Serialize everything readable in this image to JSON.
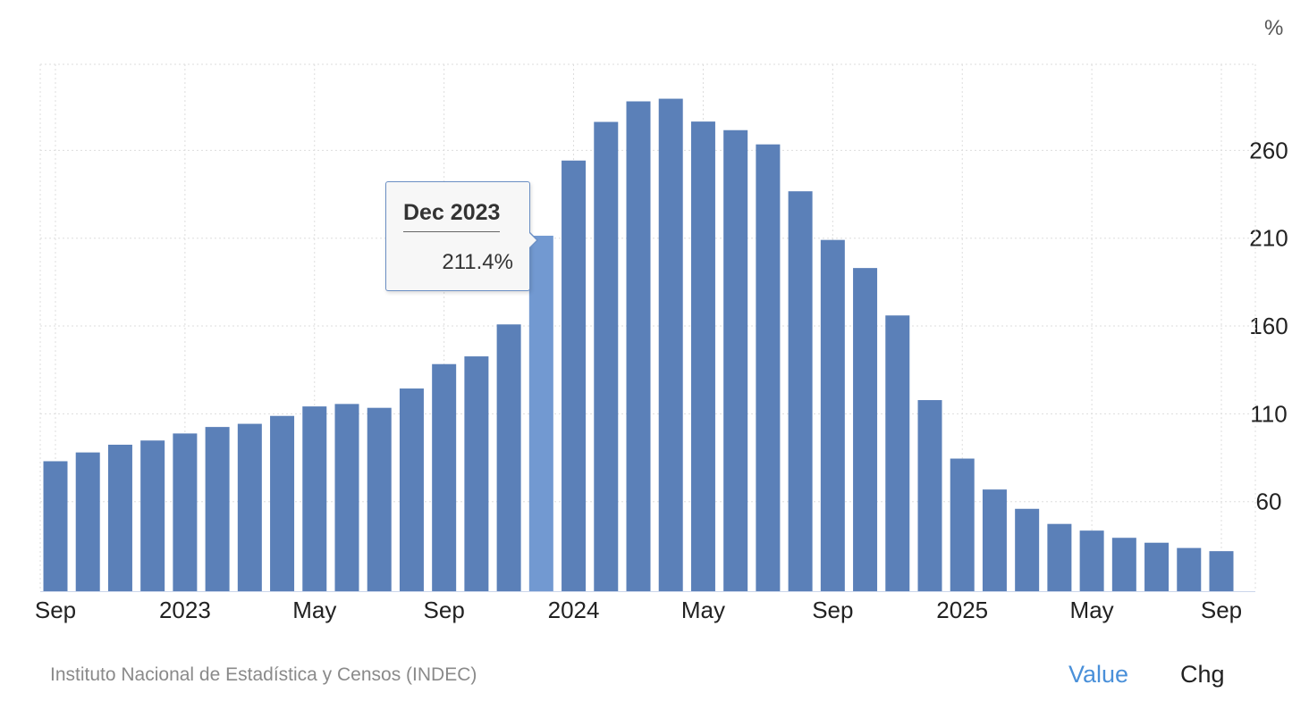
{
  "chart_data": {
    "type": "bar",
    "unit_label": "%",
    "categories": [
      "Sep 2022",
      "Oct 2022",
      "Nov 2022",
      "Dec 2022",
      "Jan 2023",
      "Feb 2023",
      "Mar 2023",
      "Apr 2023",
      "May 2023",
      "Jun 2023",
      "Jul 2023",
      "Aug 2023",
      "Sep 2023",
      "Oct 2023",
      "Nov 2023",
      "Dec 2023",
      "Jan 2024",
      "Feb 2024",
      "Mar 2024",
      "Apr 2024",
      "May 2024",
      "Jun 2024",
      "Jul 2024",
      "Aug 2024",
      "Sep 2024",
      "Oct 2024",
      "Nov 2024",
      "Dec 2024",
      "Jan 2025",
      "Feb 2025",
      "Mar 2025",
      "Apr 2025",
      "May 2025",
      "Jun 2025",
      "Jul 2025",
      "Aug 2025",
      "Sep 2025"
    ],
    "values": [
      83.0,
      88.0,
      92.4,
      94.8,
      98.8,
      102.5,
      104.3,
      108.8,
      114.2,
      115.6,
      113.4,
      124.4,
      138.3,
      142.7,
      160.9,
      211.4,
      254.2,
      276.2,
      287.9,
      289.4,
      276.4,
      271.5,
      263.4,
      236.7,
      209.0,
      193.0,
      166.0,
      117.8,
      84.5,
      66.9,
      55.9,
      47.3,
      43.5,
      39.4,
      36.6,
      33.6,
      31.8
    ],
    "x_tick_labels": [
      {
        "index": 0,
        "label": "Sep"
      },
      {
        "index": 4,
        "label": "2023"
      },
      {
        "index": 8,
        "label": "May"
      },
      {
        "index": 12,
        "label": "Sep"
      },
      {
        "index": 16,
        "label": "2024"
      },
      {
        "index": 20,
        "label": "May"
      },
      {
        "index": 24,
        "label": "Sep"
      },
      {
        "index": 28,
        "label": "2025"
      },
      {
        "index": 32,
        "label": "May"
      },
      {
        "index": 36,
        "label": "Sep"
      }
    ],
    "y_ticks": [
      60,
      110,
      160,
      210,
      260
    ],
    "ylim": [
      9,
      309
    ],
    "grid": true,
    "y_axis_side": "right",
    "highlighted_index": 15,
    "bar_color": "#5b80b8",
    "highlight_color": "#7299d1"
  },
  "tooltip": {
    "title": "Dec 2023",
    "value": "211.4%"
  },
  "footer": {
    "source": "Instituto Nacional de Estadística y Censos (INDEC)",
    "tabs": [
      {
        "label": "Value",
        "active": true,
        "color": "#4a90d9"
      },
      {
        "label": "Chg",
        "active": false
      }
    ]
  }
}
